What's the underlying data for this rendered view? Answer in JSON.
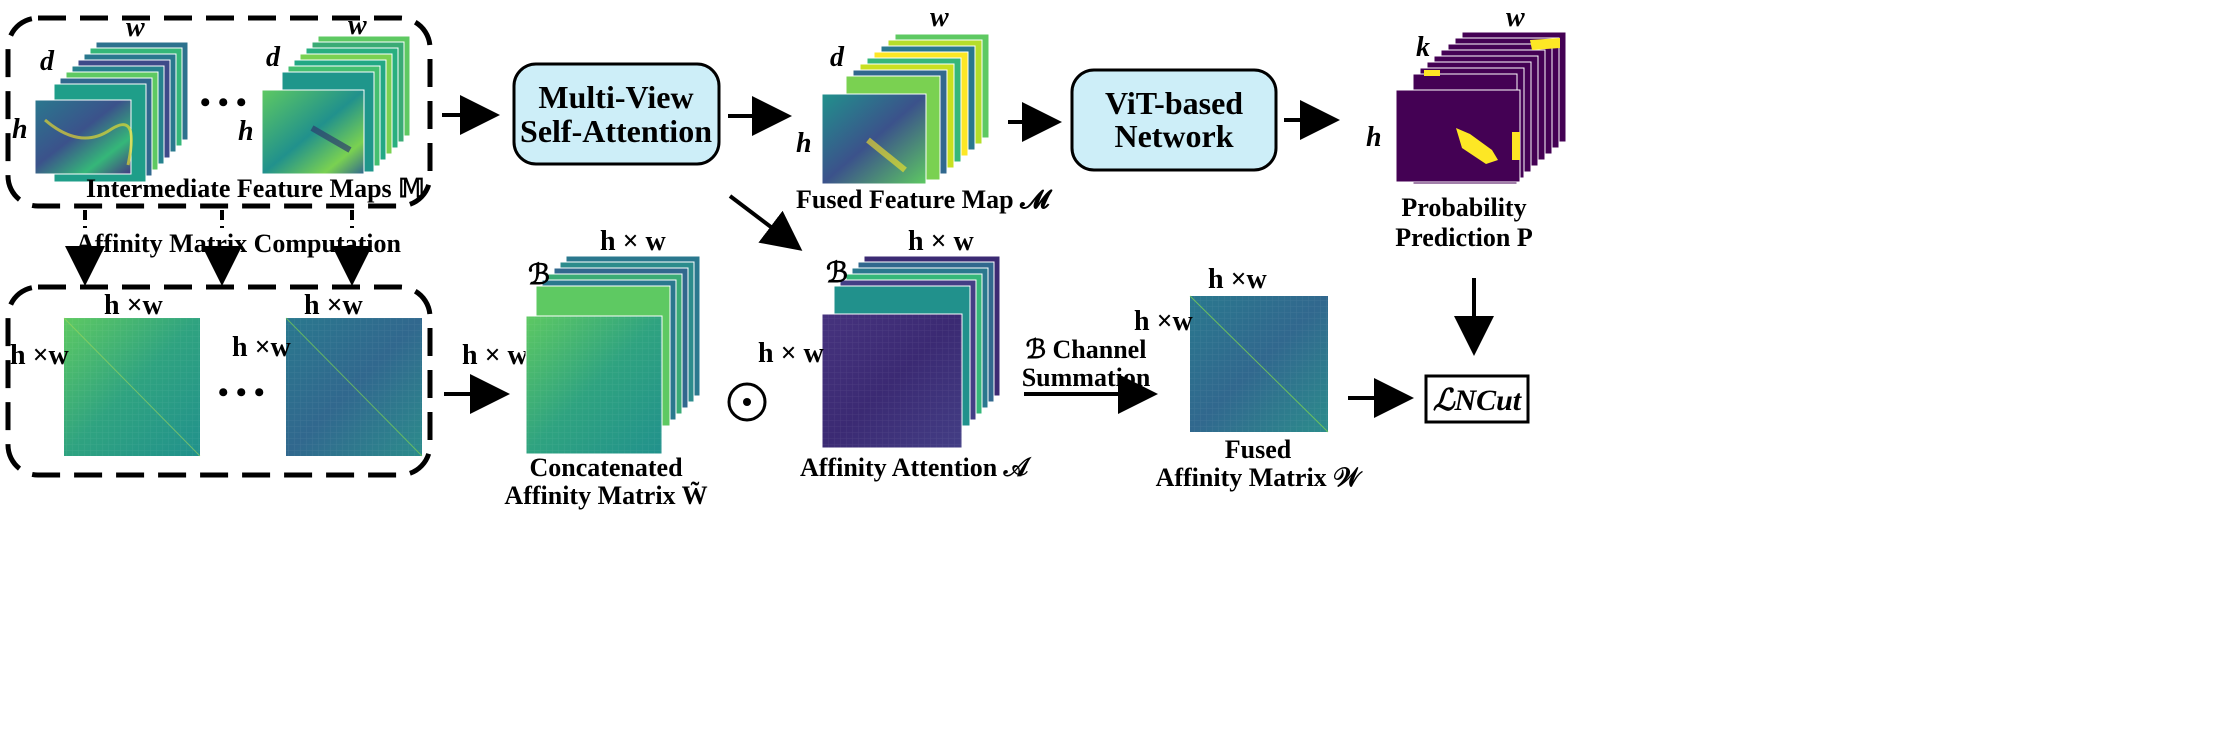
{
  "top": {
    "intermediate_caption": "Intermediate Feature Maps 𝕄",
    "group1": {
      "d": "d",
      "w": "w",
      "h": "h"
    },
    "group2": {
      "d": "d",
      "w": "w",
      "h": "h"
    },
    "dots": "• • •",
    "multiview_line1": "Multi-View",
    "multiview_line2": "Self-Attention",
    "fused": {
      "d": "d",
      "w": "w",
      "h": "h",
      "caption": "Fused Feature Map 𝓜"
    },
    "vit_line1": "ViT-based",
    "vit_line2": "Network",
    "prob": {
      "k": "k",
      "w": "w",
      "h": "h",
      "line1": "Probability",
      "line2": "Prediction P"
    }
  },
  "middle": {
    "affinity_computation": "Affinity Matrix Computation"
  },
  "bottom": {
    "mat1": {
      "top": "h ×w",
      "left": "h ×w"
    },
    "mat2": {
      "top": "h ×w",
      "left": "h ×w"
    },
    "dots": "• • •",
    "concat": {
      "top": "h × w",
      "left": "h × w",
      "b": "ℬ",
      "line1": "Concatenated",
      "line2": "Affinity Matrix W̃"
    },
    "odot": "⊙",
    "attn": {
      "top": "h × w",
      "left": "h × w",
      "b": "ℬ",
      "caption": "Affinity Attention 𝒜"
    },
    "summation_line1": "ℬ Channel",
    "summation_line2": "Summation",
    "fusedW": {
      "top": "h ×w",
      "left": "h ×w",
      "line1": "Fused",
      "line2": "Affinity Matrix 𝒲"
    },
    "loss": "ℒNCut"
  },
  "colors": {
    "box_fill": "#cdeef8",
    "viridis_dark": "#440154",
    "viridis_teal": "#21918c",
    "viridis_yellow": "#fde725",
    "matrix_green": "#3fa37a",
    "matrix_blue": "#2f6f8e"
  }
}
